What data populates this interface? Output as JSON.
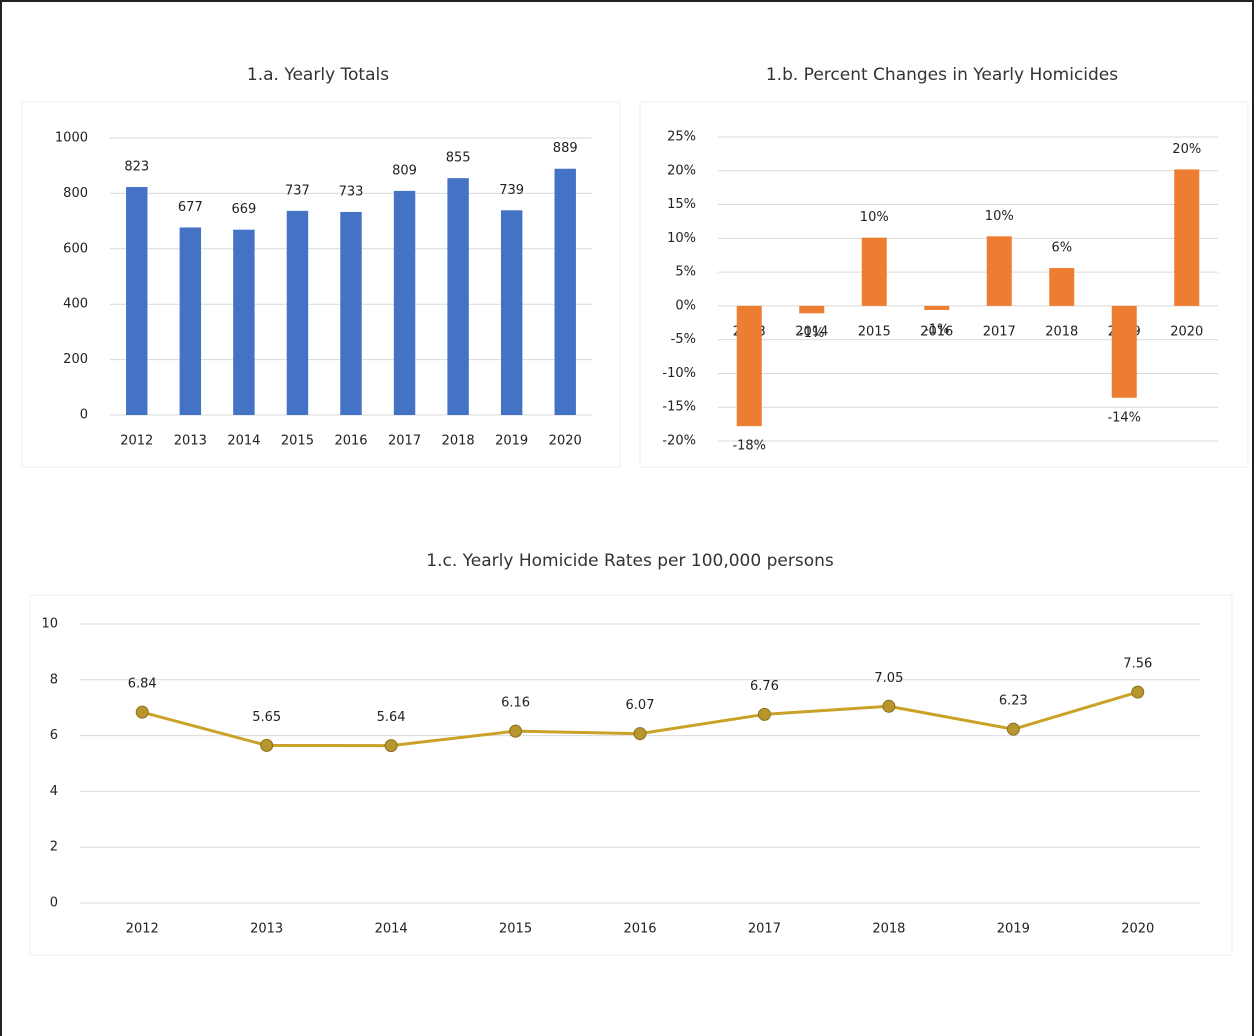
{
  "chart_data": [
    {
      "type": "bar",
      "title": "1.a. Yearly Totals",
      "categories": [
        "2012",
        "2013",
        "2014",
        "2015",
        "2016",
        "2017",
        "2018",
        "2019",
        "2020"
      ],
      "values": [
        823,
        677,
        669,
        737,
        733,
        809,
        855,
        739,
        889
      ],
      "color": "#4472c4",
      "ylim": [
        0,
        1000
      ],
      "yticks": [
        0,
        200,
        400,
        600,
        800,
        1000
      ],
      "grid": true
    },
    {
      "type": "bar",
      "title": "1.b. Percent Changes in Yearly Homicides",
      "categories": [
        "2013",
        "2014",
        "2015",
        "2016",
        "2017",
        "2018",
        "2019",
        "2020"
      ],
      "values": [
        -17.8,
        -1.1,
        10.1,
        -0.6,
        10.3,
        5.6,
        -13.6,
        20.2
      ],
      "value_labels": [
        "-18%",
        "-1%",
        "10%",
        "-1%",
        "10%",
        "6%",
        "-14%",
        "20%"
      ],
      "color": "#ed7d31",
      "ylim": [
        -20,
        25
      ],
      "yticks": [
        {
          "value": -20,
          "label": "-20%"
        },
        {
          "value": -15,
          "label": "-15%"
        },
        {
          "value": -10,
          "label": "-10%"
        },
        {
          "value": -5,
          "label": "-5%"
        },
        {
          "value": 0,
          "label": "0%"
        },
        {
          "value": 5,
          "label": "5%"
        },
        {
          "value": 10,
          "label": "10%"
        },
        {
          "value": 15,
          "label": "15%"
        },
        {
          "value": 20,
          "label": "20%"
        },
        {
          "value": 25,
          "label": "25%"
        }
      ],
      "grid": true
    },
    {
      "type": "line",
      "title": "1.c. Yearly Homicide Rates per 100,000 persons",
      "categories": [
        "2012",
        "2013",
        "2014",
        "2015",
        "2016",
        "2017",
        "2018",
        "2019",
        "2020"
      ],
      "values": [
        6.84,
        5.65,
        5.64,
        6.16,
        6.07,
        6.76,
        7.05,
        6.23,
        7.56
      ],
      "color": "#c9a227",
      "ylim": [
        0,
        10
      ],
      "yticks": [
        0,
        2,
        4,
        6,
        8,
        10
      ],
      "grid": true
    }
  ]
}
